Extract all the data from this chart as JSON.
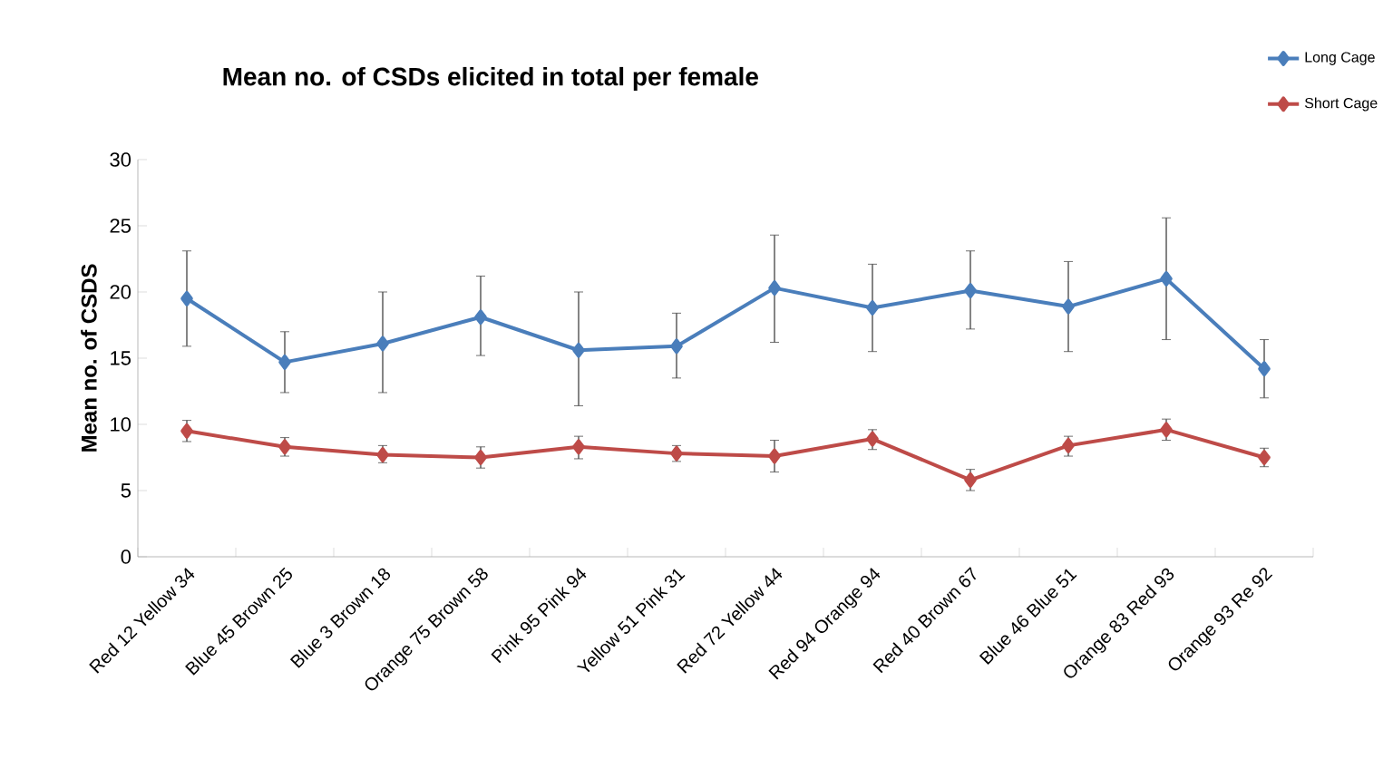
{
  "chart_data": {
    "type": "line",
    "title": "Mean no. of CSDs elicited in total per female",
    "ylabel": "Mean no. of CSDS",
    "categories": [
      "Red 12 Yellow 34",
      "Blue 45 Brown 25",
      "Blue 3 Brown 18",
      "Orange 75 Brown 58",
      "Pink 95 Pink 94",
      "Yellow 51 Pink 31",
      "Red 72 Yellow 44",
      "Red 94 Orange 94",
      "Red 40 Brown 67",
      "Blue 46  Blue 51",
      "Orange 83 Red 93",
      "Orange 93 Re 92"
    ],
    "series": [
      {
        "name": "Long Cage",
        "color": "#4a7ebb",
        "values": [
          19.5,
          14.7,
          16.1,
          18.1,
          15.6,
          15.9,
          20.3,
          18.8,
          20.1,
          18.9,
          21.0,
          14.2
        ],
        "errors": [
          [
            15.9,
            23.1
          ],
          [
            12.4,
            17.0
          ],
          [
            12.4,
            20.0
          ],
          [
            15.2,
            21.2
          ],
          [
            11.4,
            20.0
          ],
          [
            13.5,
            18.4
          ],
          [
            16.2,
            24.3
          ],
          [
            15.5,
            22.1
          ],
          [
            17.2,
            23.1
          ],
          [
            15.5,
            22.3
          ],
          [
            16.4,
            25.6
          ],
          [
            12.0,
            16.4
          ]
        ]
      },
      {
        "name": "Short Cage",
        "color": "#be4b48",
        "values": [
          9.5,
          8.3,
          7.7,
          7.5,
          8.3,
          7.8,
          7.6,
          8.9,
          5.8,
          8.4,
          9.6,
          7.5
        ],
        "errors": [
          [
            8.7,
            10.3
          ],
          [
            7.6,
            9.0
          ],
          [
            7.1,
            8.4
          ],
          [
            6.7,
            8.3
          ],
          [
            7.4,
            9.1
          ],
          [
            7.2,
            8.4
          ],
          [
            6.4,
            8.8
          ],
          [
            8.1,
            9.6
          ],
          [
            5.0,
            6.6
          ],
          [
            7.6,
            9.1
          ],
          [
            8.8,
            10.4
          ],
          [
            6.8,
            8.2
          ]
        ]
      }
    ],
    "ylim": [
      0,
      30
    ],
    "yticks": [
      0,
      5,
      10,
      15,
      20,
      25,
      30
    ],
    "grid": false,
    "legend": "top right",
    "marker": "diamond",
    "line_style": "solid"
  }
}
